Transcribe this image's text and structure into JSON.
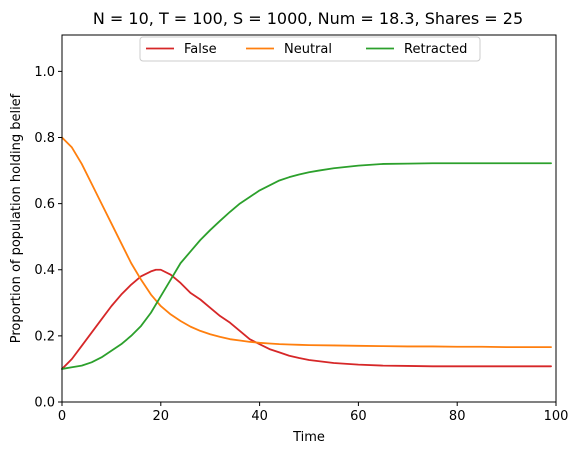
{
  "chart_data": {
    "type": "line",
    "title": "N = 10, T = 100, S = 1000, Num = 18.3, Shares = 25",
    "xlabel": "Time",
    "ylabel": "Proportion of population holding belief",
    "xlim": [
      0,
      100
    ],
    "ylim": [
      0,
      1.11
    ],
    "xticks": [
      0,
      20,
      40,
      60,
      80,
      100
    ],
    "yticks": [
      0.0,
      0.2,
      0.4,
      0.6,
      0.8,
      1.0
    ],
    "xtick_labels": [
      "0",
      "20",
      "40",
      "60",
      "80",
      "100"
    ],
    "ytick_labels": [
      "0.0",
      "0.2",
      "0.4",
      "0.6",
      "0.8",
      "1.0"
    ],
    "grid": false,
    "legend_position": "upper-center",
    "series": [
      {
        "name": "False",
        "color": "#d62728",
        "x": [
          0,
          2,
          4,
          6,
          8,
          10,
          12,
          14,
          16,
          18,
          19,
          20,
          22,
          24,
          26,
          28,
          30,
          32,
          34,
          36,
          38,
          40,
          42,
          44,
          46,
          48,
          50,
          55,
          60,
          65,
          70,
          75,
          80,
          85,
          90,
          95,
          99
        ],
        "y": [
          0.1,
          0.13,
          0.17,
          0.21,
          0.25,
          0.29,
          0.325,
          0.355,
          0.38,
          0.395,
          0.4,
          0.4,
          0.385,
          0.36,
          0.33,
          0.31,
          0.285,
          0.26,
          0.24,
          0.215,
          0.19,
          0.175,
          0.16,
          0.15,
          0.14,
          0.133,
          0.127,
          0.118,
          0.113,
          0.11,
          0.109,
          0.108,
          0.108,
          0.108,
          0.108,
          0.108,
          0.108
        ]
      },
      {
        "name": "Neutral",
        "color": "#ff7f0e",
        "x": [
          0,
          2,
          4,
          6,
          8,
          10,
          12,
          14,
          16,
          18,
          20,
          22,
          24,
          26,
          28,
          30,
          32,
          34,
          36,
          38,
          40,
          42,
          44,
          46,
          48,
          50,
          55,
          60,
          65,
          70,
          75,
          80,
          85,
          90,
          95,
          99
        ],
        "y": [
          0.8,
          0.77,
          0.72,
          0.66,
          0.6,
          0.54,
          0.48,
          0.42,
          0.37,
          0.325,
          0.29,
          0.265,
          0.245,
          0.228,
          0.215,
          0.205,
          0.197,
          0.19,
          0.186,
          0.182,
          0.179,
          0.177,
          0.175,
          0.174,
          0.173,
          0.172,
          0.171,
          0.17,
          0.169,
          0.168,
          0.168,
          0.167,
          0.167,
          0.166,
          0.166,
          0.166
        ]
      },
      {
        "name": "Retracted",
        "color": "#2ca02c",
        "x": [
          0,
          2,
          4,
          6,
          8,
          10,
          12,
          14,
          16,
          18,
          20,
          22,
          24,
          26,
          28,
          30,
          32,
          34,
          36,
          38,
          40,
          42,
          44,
          46,
          48,
          50,
          52,
          55,
          60,
          65,
          70,
          75,
          80,
          85,
          90,
          95,
          99
        ],
        "y": [
          0.1,
          0.105,
          0.11,
          0.12,
          0.135,
          0.155,
          0.175,
          0.2,
          0.23,
          0.27,
          0.32,
          0.37,
          0.42,
          0.455,
          0.49,
          0.52,
          0.548,
          0.575,
          0.6,
          0.62,
          0.64,
          0.655,
          0.67,
          0.68,
          0.688,
          0.695,
          0.7,
          0.707,
          0.715,
          0.72,
          0.721,
          0.722,
          0.722,
          0.722,
          0.722,
          0.722,
          0.722
        ]
      }
    ]
  }
}
